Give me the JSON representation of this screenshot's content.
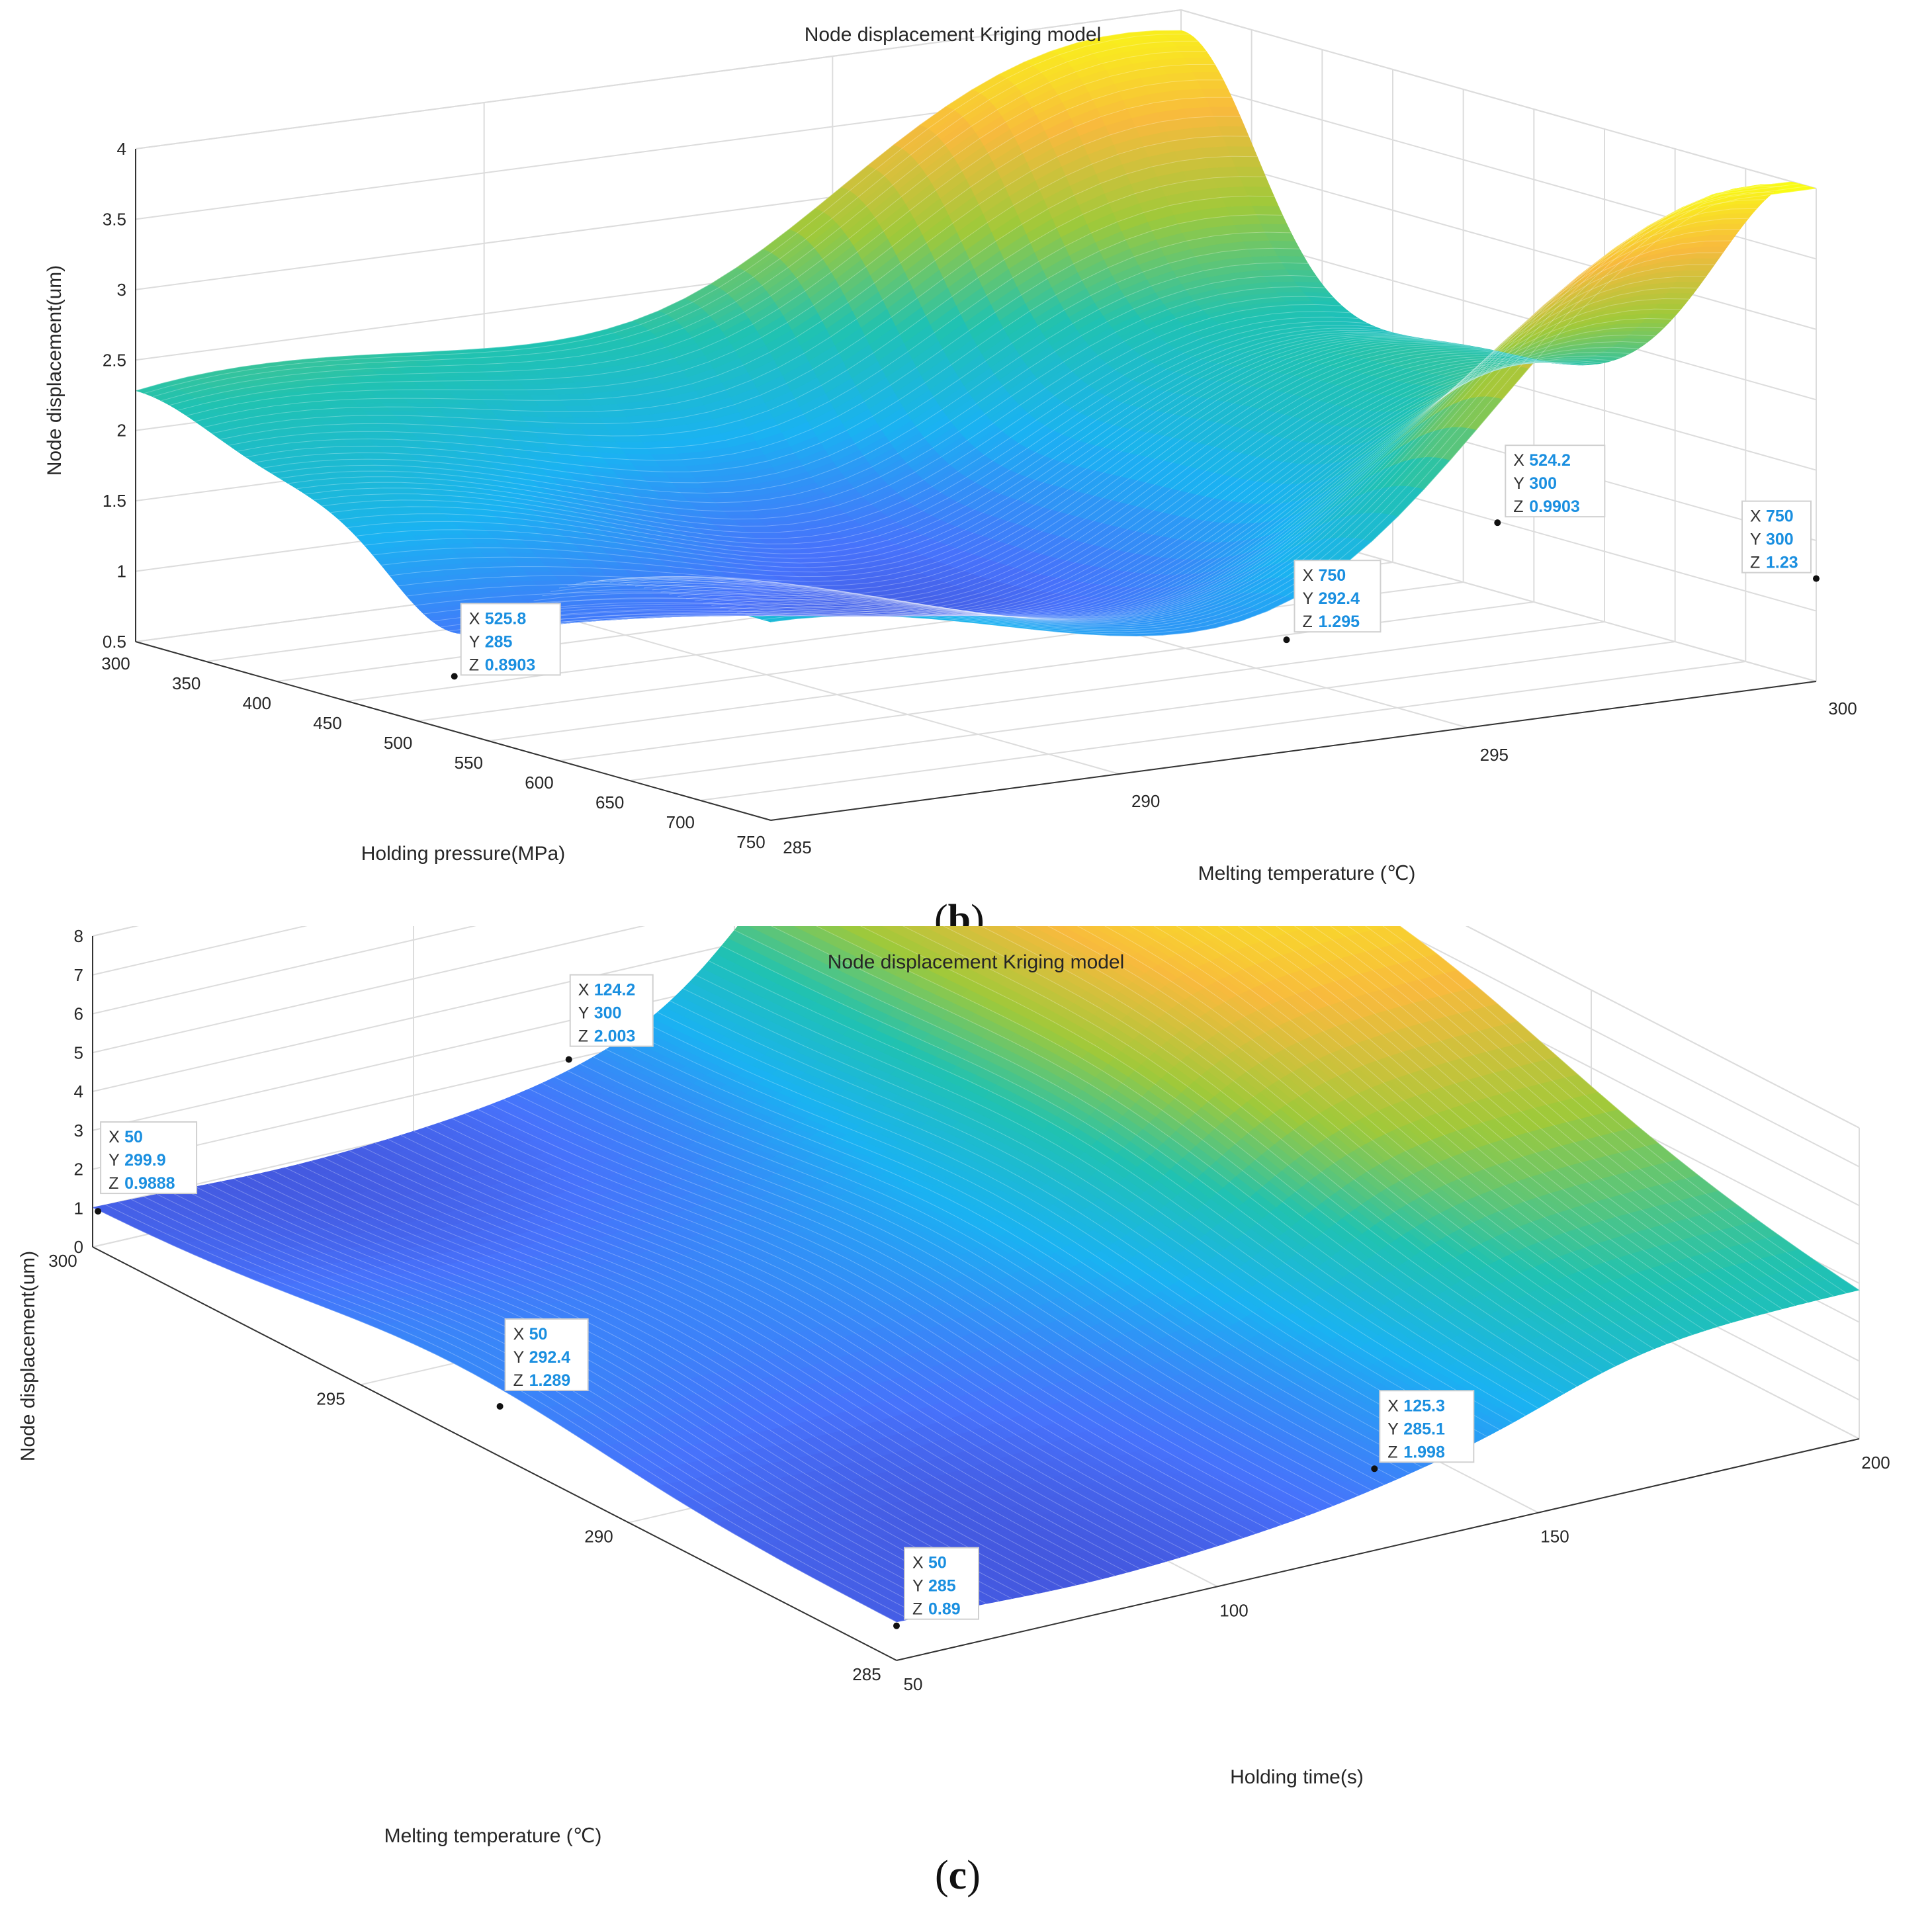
{
  "chart_data": [
    {
      "type": "surface",
      "panel_label": "(b)",
      "panel_letter": "b",
      "title": "Node displacement Kriging model",
      "xlabel": "Holding pressure(MPa)",
      "ylabel": "Melting temperature (℃)",
      "zlabel": "Node displacement(um)",
      "xlim": [
        300,
        750
      ],
      "ylim": [
        285,
        300
      ],
      "zlim": [
        0.5,
        4
      ],
      "xticks": [
        "300",
        "350",
        "400",
        "450",
        "500",
        "550",
        "600",
        "650",
        "700",
        "750"
      ],
      "yticks": [
        "285",
        "290",
        "295",
        "300"
      ],
      "zticks": [
        "0.5",
        "1",
        "1.5",
        "2",
        "2.5",
        "3",
        "3.5",
        "4"
      ],
      "datatips": [
        {
          "x": "525.8",
          "y": "285",
          "z": "0.8903"
        },
        {
          "x": "750",
          "y": "292.4",
          "z": "1.295"
        },
        {
          "x": "524.2",
          "y": "300",
          "z": "0.9903"
        },
        {
          "x": "750",
          "y": "300",
          "z": "1.23"
        }
      ],
      "colormap": [
        "#3e26a8",
        "#4772fb",
        "#1ab2f2",
        "#20c2b1",
        "#9fc93a",
        "#f8ba3d",
        "#f9fb15"
      ]
    },
    {
      "type": "surface",
      "panel_label": "(c)",
      "panel_letter": "c",
      "title": "Node displacement Kriging model",
      "xlabel": "Holding time(s)",
      "ylabel": "Melting temperature (℃)",
      "zlabel": "Node displacement(um)",
      "xlim": [
        50,
        200
      ],
      "ylim": [
        285,
        300
      ],
      "zlim": [
        0,
        8
      ],
      "xticks": [
        "50",
        "100",
        "150",
        "200"
      ],
      "yticks": [
        "285",
        "290",
        "295",
        "300"
      ],
      "zticks": [
        "0",
        "1",
        "2",
        "3",
        "4",
        "5",
        "6",
        "7",
        "8"
      ],
      "datatips": [
        {
          "x": "124.2",
          "y": "300",
          "z": "2.003"
        },
        {
          "x": "50",
          "y": "299.9",
          "z": "0.9888"
        },
        {
          "x": "50",
          "y": "292.4",
          "z": "1.289"
        },
        {
          "x": "125.3",
          "y": "285.1",
          "z": "1.998"
        },
        {
          "x": "50",
          "y": "285",
          "z": "0.89"
        }
      ],
      "colormap": [
        "#3e26a8",
        "#4772fb",
        "#1ab2f2",
        "#20c2b1",
        "#9fc93a",
        "#f8ba3d",
        "#f9fb15"
      ]
    }
  ]
}
